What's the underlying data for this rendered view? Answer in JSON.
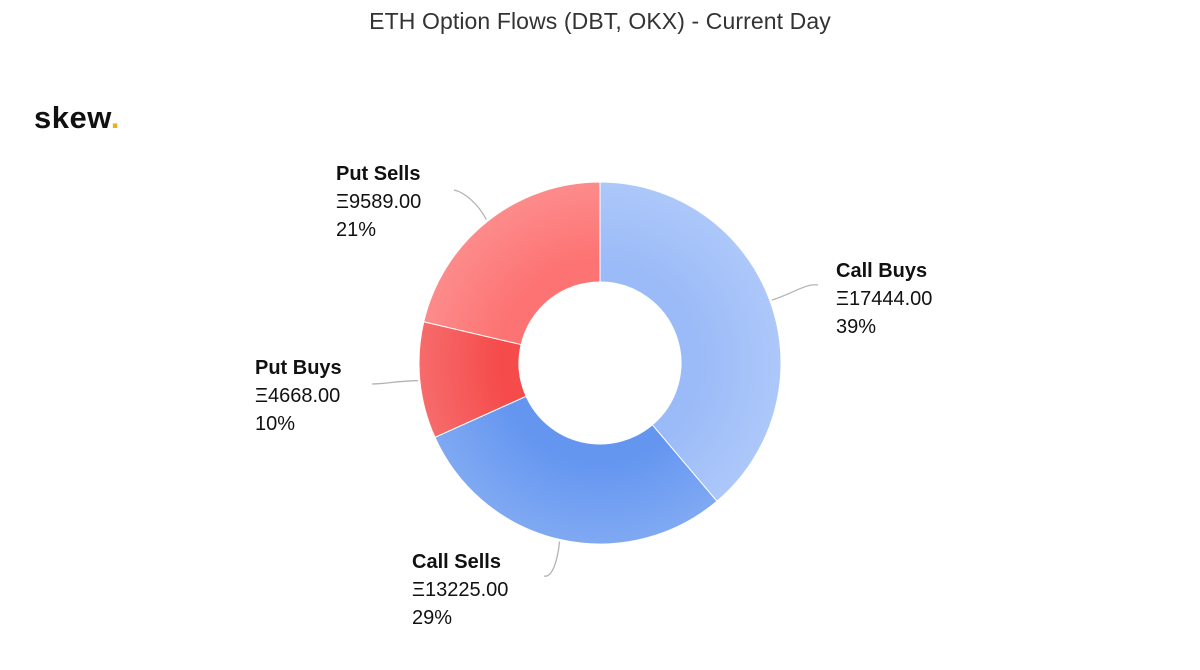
{
  "brand": {
    "name": "skew",
    "dot": "."
  },
  "chart_data": {
    "type": "pie",
    "variant": "donut",
    "title": "ETH Option Flows (DBT, OKX) - Current Day",
    "slices": [
      {
        "name": "Call Buys",
        "value_label": "Ξ17444.00",
        "value": 17444.0,
        "percent_label": "39%",
        "color": "#9bbbf8"
      },
      {
        "name": "Call Sells",
        "value_label": "Ξ13225.00",
        "value": 13225.0,
        "percent_label": "29%",
        "color": "#6496f0"
      },
      {
        "name": "Put Buys",
        "value_label": "Ξ4668.00",
        "value": 4668.0,
        "percent_label": "10%",
        "color": "#f54b4b"
      },
      {
        "name": "Put Sells",
        "value_label": "Ξ9589.00",
        "value": 9589.0,
        "percent_label": "21%",
        "color": "#fd7272"
      }
    ],
    "start": "top",
    "direction": "clockwise",
    "legend": "none"
  }
}
